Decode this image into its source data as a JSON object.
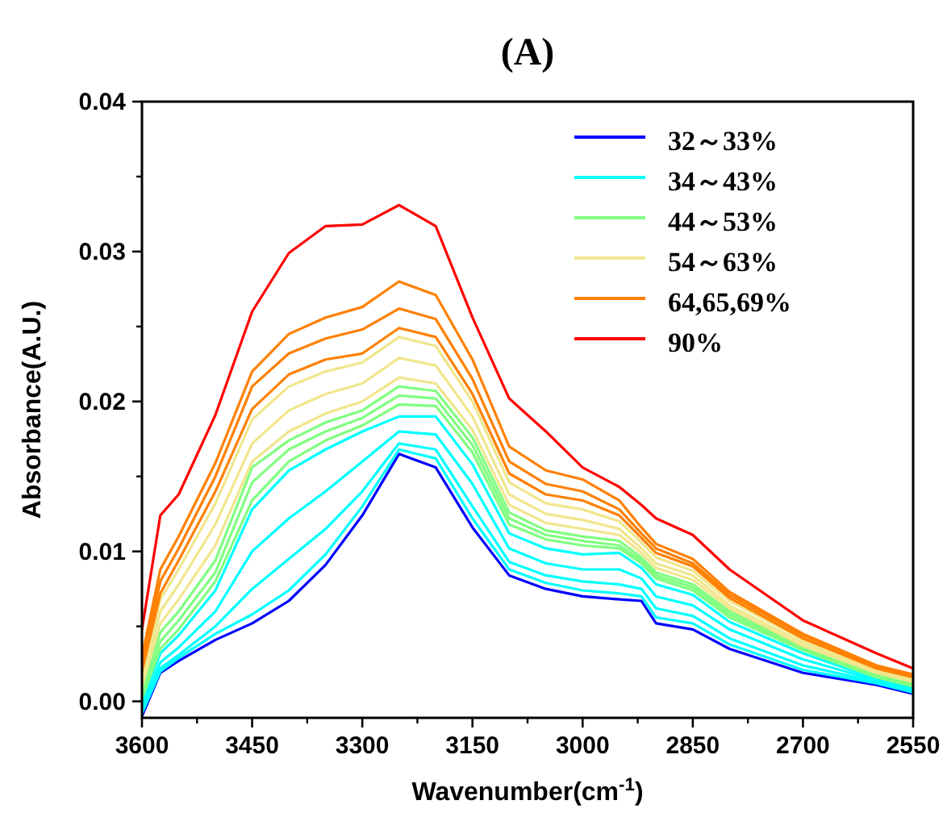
{
  "chart_data": {
    "type": "line",
    "title": "(A)",
    "xlabel": "Wavenumber(cm$^{-1}$)",
    "ylabel": "Absorbance(A.U.)",
    "x": [
      3600,
      3575,
      3550,
      3500,
      3450,
      3400,
      3350,
      3300,
      3250,
      3200,
      3150,
      3100,
      3050,
      3000,
      2950,
      2920,
      2900,
      2850,
      2800,
      2700,
      2600,
      2550
    ],
    "xlim": [
      3600,
      2550
    ],
    "xticks": [
      3600,
      3450,
      3300,
      3150,
      3000,
      2850,
      2700,
      2550
    ],
    "ylim": [
      -0.0011,
      0.04
    ],
    "yticks": [
      {
        "value": 0,
        "label": "0.00"
      },
      {
        "value": 0.01,
        "label": "0.01"
      },
      {
        "value": 0.02,
        "label": "0.02"
      },
      {
        "value": 0.03,
        "label": "0.03"
      },
      {
        "value": 0.04,
        "label": "0.04"
      }
    ],
    "legend": "top right",
    "series": [
      {
        "name": "32～33%",
        "color": "#0000ff",
        "values": [
          -0.001,
          0.0019,
          0.0027,
          0.0041,
          0.0052,
          0.0067,
          0.0091,
          0.0124,
          0.0165,
          0.0156,
          0.0116,
          0.0084,
          0.0075,
          0.007,
          0.0068,
          0.0067,
          0.0052,
          0.0048,
          0.0035,
          0.0019,
          0.0011,
          0.0005
        ]
      },
      {
        "name": "34～43%",
        "color": "#00ffff",
        "values": [
          -0.0008,
          0.002,
          0.0029,
          0.0045,
          0.0058,
          0.0074,
          0.0098,
          0.013,
          0.0168,
          0.0162,
          0.0122,
          0.0088,
          0.0079,
          0.0074,
          0.0072,
          0.007,
          0.0056,
          0.0052,
          0.0038,
          0.0021,
          0.0012,
          0.0006
        ]
      },
      {
        "color": "#00ffff",
        "values": [
          -0.0006,
          0.0022,
          0.0031,
          0.005,
          0.0075,
          0.0095,
          0.0115,
          0.014,
          0.0172,
          0.0168,
          0.013,
          0.0093,
          0.0084,
          0.008,
          0.0078,
          0.0075,
          0.0062,
          0.0057,
          0.0042,
          0.0024,
          0.0013,
          0.0007
        ]
      },
      {
        "color": "#00ffff",
        "values": [
          -0.0003,
          0.0026,
          0.0036,
          0.006,
          0.01,
          0.0122,
          0.014,
          0.016,
          0.018,
          0.0178,
          0.0145,
          0.0102,
          0.0092,
          0.0088,
          0.0088,
          0.0082,
          0.007,
          0.0064,
          0.0048,
          0.0028,
          0.0014,
          0.0008
        ]
      },
      {
        "color": "#00ffff",
        "values": [
          0.0,
          0.0032,
          0.0044,
          0.0074,
          0.0128,
          0.0154,
          0.0168,
          0.018,
          0.019,
          0.019,
          0.0158,
          0.0112,
          0.0102,
          0.0098,
          0.0099,
          0.0089,
          0.0078,
          0.0071,
          0.0053,
          0.0032,
          0.0015,
          0.0009
        ]
      },
      {
        "name": "44～53%",
        "color": "#80ff80",
        "values": [
          0.0002,
          0.0035,
          0.0048,
          0.008,
          0.0134,
          0.016,
          0.0174,
          0.0184,
          0.0198,
          0.0197,
          0.0166,
          0.0118,
          0.0108,
          0.0104,
          0.0102,
          0.0092,
          0.0082,
          0.0074,
          0.0056,
          0.0034,
          0.0016,
          0.001
        ]
      },
      {
        "color": "#80ff80",
        "values": [
          0.0005,
          0.004,
          0.0054,
          0.0086,
          0.0146,
          0.0168,
          0.018,
          0.0189,
          0.0204,
          0.0202,
          0.0171,
          0.0122,
          0.0111,
          0.0107,
          0.0104,
          0.0094,
          0.0084,
          0.0076,
          0.0058,
          0.0035,
          0.0017,
          0.0011
        ]
      },
      {
        "color": "#80ff80",
        "values": [
          0.0008,
          0.0046,
          0.006,
          0.0094,
          0.0156,
          0.0174,
          0.0186,
          0.0194,
          0.021,
          0.0207,
          0.0176,
          0.0126,
          0.0114,
          0.011,
          0.0107,
          0.0096,
          0.0086,
          0.0078,
          0.006,
          0.0036,
          0.0018,
          0.0012
        ]
      },
      {
        "name": "54～63%",
        "color": "#f0e68c",
        "values": [
          0.001,
          0.0052,
          0.0068,
          0.0104,
          0.016,
          0.018,
          0.0192,
          0.02,
          0.0216,
          0.0212,
          0.0181,
          0.0131,
          0.0119,
          0.0115,
          0.0111,
          0.0099,
          0.0089,
          0.0081,
          0.0062,
          0.0037,
          0.0019,
          0.0013
        ]
      },
      {
        "color": "#f0e68c",
        "values": [
          0.0014,
          0.006,
          0.0078,
          0.0118,
          0.0172,
          0.0194,
          0.0205,
          0.0212,
          0.0229,
          0.0224,
          0.019,
          0.0138,
          0.0125,
          0.0121,
          0.0115,
          0.0102,
          0.0092,
          0.0084,
          0.0064,
          0.0039,
          0.002,
          0.0014
        ]
      },
      {
        "color": "#f0e68c",
        "values": [
          0.0018,
          0.0068,
          0.0088,
          0.0132,
          0.0188,
          0.021,
          0.022,
          0.0226,
          0.0243,
          0.0237,
          0.02,
          0.0146,
          0.0132,
          0.0128,
          0.012,
          0.0106,
          0.0096,
          0.0087,
          0.0067,
          0.0041,
          0.0021,
          0.0015
        ]
      },
      {
        "name": "64,65,69%",
        "color": "#ff8000",
        "values": [
          0.002,
          0.0072,
          0.0094,
          0.014,
          0.0195,
          0.0218,
          0.0228,
          0.0232,
          0.0249,
          0.0243,
          0.0205,
          0.0152,
          0.0138,
          0.0134,
          0.0124,
          0.0109,
          0.0099,
          0.009,
          0.0069,
          0.0042,
          0.0022,
          0.0016
        ]
      },
      {
        "color": "#ff8000",
        "values": [
          0.0025,
          0.008,
          0.0102,
          0.015,
          0.021,
          0.0232,
          0.0242,
          0.0248,
          0.0262,
          0.0255,
          0.0215,
          0.016,
          0.0145,
          0.014,
          0.0128,
          0.0112,
          0.0102,
          0.0092,
          0.0071,
          0.0044,
          0.0023,
          0.0017
        ]
      },
      {
        "color": "#ff8000",
        "values": [
          0.003,
          0.0088,
          0.011,
          0.0159,
          0.022,
          0.0245,
          0.0256,
          0.0263,
          0.028,
          0.0271,
          0.0228,
          0.017,
          0.0154,
          0.0148,
          0.0134,
          0.0116,
          0.0105,
          0.0095,
          0.0073,
          0.0045,
          0.0024,
          0.0018
        ]
      },
      {
        "name": "90%",
        "color": "#ff0000",
        "values": [
          0.0048,
          0.0124,
          0.0138,
          0.0191,
          0.026,
          0.0299,
          0.0317,
          0.0318,
          0.0331,
          0.0317,
          0.0256,
          0.0202,
          0.018,
          0.0156,
          0.0143,
          0.0131,
          0.0122,
          0.0111,
          0.0088,
          0.0054,
          0.0032,
          0.0022
        ]
      }
    ]
  }
}
